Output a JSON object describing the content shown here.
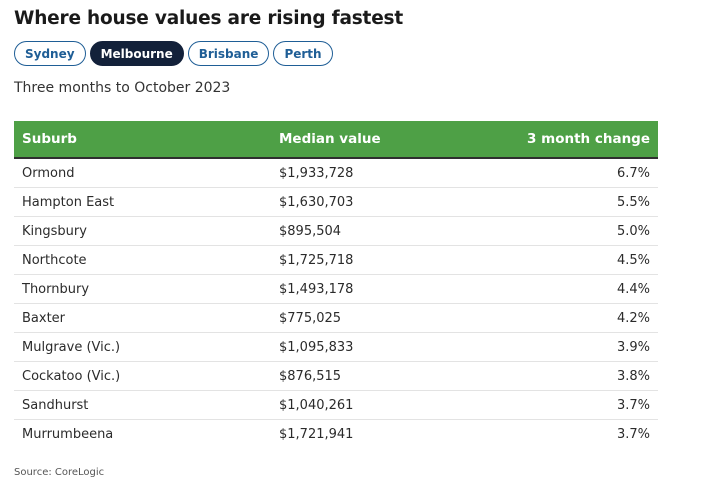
{
  "header": {
    "title": "Where house values are rising fastest",
    "subtitle": "Three months to October 2023"
  },
  "tabs": [
    {
      "label": "Sydney",
      "active": false
    },
    {
      "label": "Melbourne",
      "active": true
    },
    {
      "label": "Brisbane",
      "active": false
    },
    {
      "label": "Perth",
      "active": false
    }
  ],
  "table": {
    "columns": [
      "Suburb",
      "Median value",
      "3 month change"
    ],
    "rows": [
      [
        "Ormond",
        "$1,933,728",
        "6.7%"
      ],
      [
        "Hampton East",
        "$1,630,703",
        "5.5%"
      ],
      [
        "Kingsbury",
        "$895,504",
        "5.0%"
      ],
      [
        "Northcote",
        "$1,725,718",
        "4.5%"
      ],
      [
        "Thornbury",
        "$1,493,178",
        "4.4%"
      ],
      [
        "Baxter",
        "$775,025",
        "4.2%"
      ],
      [
        "Mulgrave (Vic.)",
        "$1,095,833",
        "3.9%"
      ],
      [
        "Cockatoo (Vic.)",
        "$876,515",
        "3.8%"
      ],
      [
        "Sandhurst",
        "$1,040,261",
        "3.7%"
      ],
      [
        "Murrumbeena",
        "$1,721,941",
        "3.7%"
      ]
    ]
  },
  "footer": {
    "source": "Source: CoreLogic"
  },
  "colors": {
    "header_green": "#4ea046",
    "tab_blue": "#1f5e96",
    "tab_active": "#13213a"
  }
}
